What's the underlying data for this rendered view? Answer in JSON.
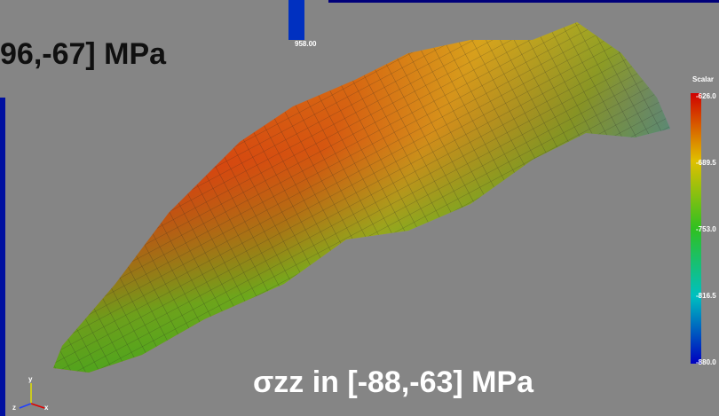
{
  "header": {
    "left_label": "96,-67] MPa",
    "top_value": "958.00"
  },
  "colorbar": {
    "title": "Scalar",
    "ticks": [
      "-626.0",
      "-689.5",
      "-753.0",
      "-816.5",
      "-880.0"
    ]
  },
  "caption": "σzz in [-88,-63] MPa",
  "axes_icon": {
    "x": "x",
    "y": "y",
    "z": "z"
  }
}
